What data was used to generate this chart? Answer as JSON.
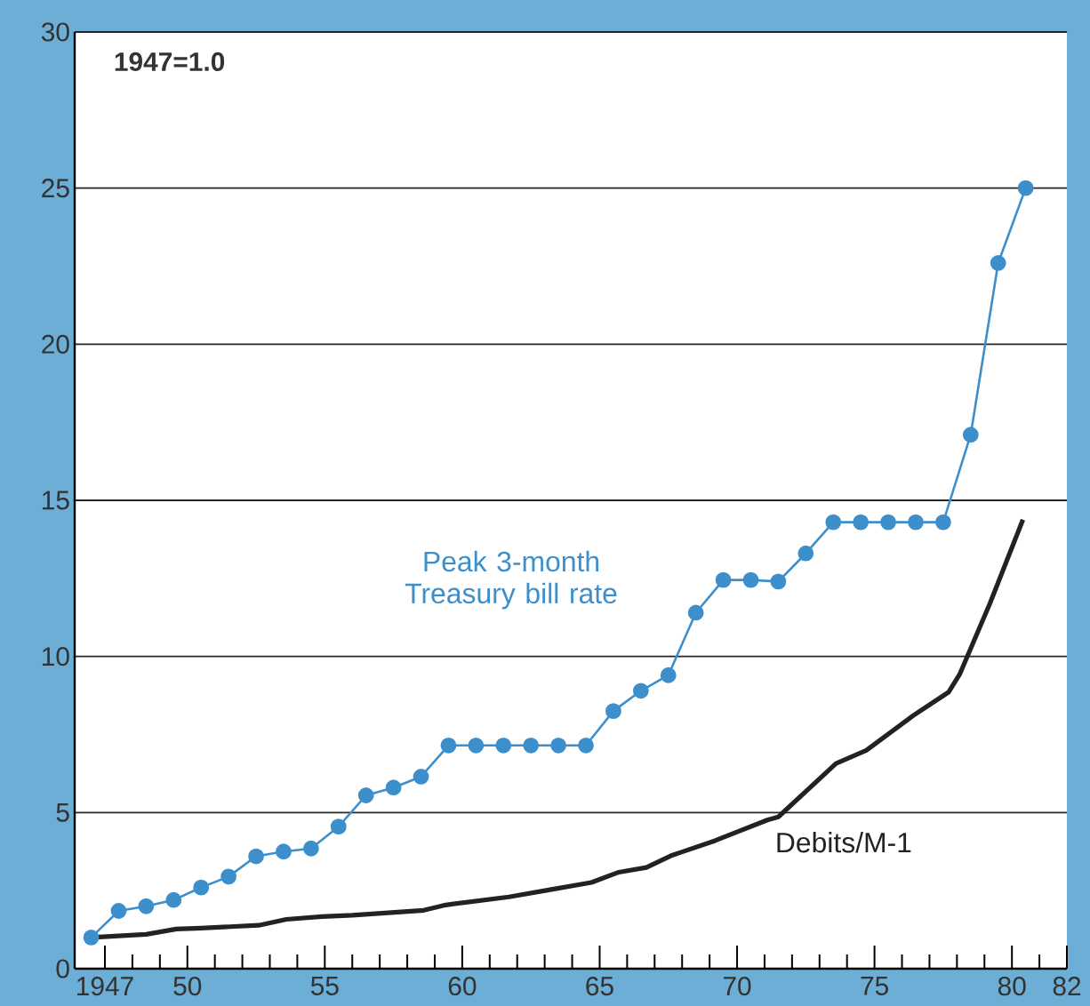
{
  "chart_data": {
    "type": "line",
    "annotations": [
      "1947=1.0"
    ],
    "xlim": [
      1945.9,
      1982
    ],
    "ylim": [
      0,
      30
    ],
    "xticks": [
      1947,
      {
        "value": 1948,
        "label": null
      },
      {
        "value": 1949,
        "label": null
      },
      {
        "value": 1950,
        "label": "50"
      },
      {
        "value": 1951,
        "label": null
      },
      {
        "value": 1952,
        "label": null
      },
      {
        "value": 1953,
        "label": null
      },
      {
        "value": 1954,
        "label": null
      },
      {
        "value": 1955,
        "label": "55"
      },
      {
        "value": 1956,
        "label": null
      },
      {
        "value": 1957,
        "label": null
      },
      {
        "value": 1958,
        "label": null
      },
      {
        "value": 1959,
        "label": null
      },
      {
        "value": 1960,
        "label": "60"
      },
      {
        "value": 1961,
        "label": null
      },
      {
        "value": 1962,
        "label": null
      },
      {
        "value": 1963,
        "label": null
      },
      {
        "value": 1964,
        "label": null
      },
      {
        "value": 1965,
        "label": "65"
      },
      {
        "value": 1966,
        "label": null
      },
      {
        "value": 1967,
        "label": null
      },
      {
        "value": 1968,
        "label": null
      },
      {
        "value": 1969,
        "label": null
      },
      {
        "value": 1970,
        "label": "70"
      },
      {
        "value": 1971,
        "label": null
      },
      {
        "value": 1972,
        "label": null
      },
      {
        "value": 1973,
        "label": null
      },
      {
        "value": 1974,
        "label": null
      },
      {
        "value": 1975,
        "label": "75"
      },
      {
        "value": 1976,
        "label": null
      },
      {
        "value": 1977,
        "label": null
      },
      {
        "value": 1978,
        "label": null
      },
      {
        "value": 1979,
        "label": null
      },
      {
        "value": 1980,
        "label": "80"
      },
      {
        "value": 1981,
        "label": null
      },
      {
        "value": 1982,
        "label": "82"
      }
    ],
    "yticks": [
      0,
      5,
      10,
      15,
      20,
      25,
      30
    ],
    "grid": "y",
    "series": [
      {
        "name": "Peak 3-month Treasury bill rate",
        "color": "#3d8fcc",
        "marker": "circle",
        "x": [
          1946.5,
          1947.5,
          1948.5,
          1949.5,
          1950.5,
          1951.5,
          1952.5,
          1953.5,
          1954.5,
          1955.5,
          1956.5,
          1957.5,
          1958.5,
          1959.5,
          1960.5,
          1961.5,
          1962.5,
          1963.5,
          1964.5,
          1965.5,
          1966.5,
          1967.5,
          1968.5,
          1969.5,
          1970.5,
          1971.5,
          1972.5,
          1973.5,
          1974.5,
          1975.5,
          1976.5,
          1977.5,
          1978.5,
          1979.5,
          1980.5
        ],
        "values": [
          1.0,
          1.85,
          2.0,
          2.2,
          2.6,
          2.95,
          3.6,
          3.75,
          3.85,
          4.55,
          5.55,
          5.8,
          6.15,
          7.15,
          7.15,
          7.15,
          7.15,
          7.15,
          7.15,
          8.25,
          8.9,
          9.4,
          11.4,
          12.45,
          12.45,
          12.4,
          13.3,
          14.3,
          14.3,
          14.3,
          14.3,
          14.3,
          17.1,
          22.6,
          25.0
        ]
      },
      {
        "name": "Debits/M-1",
        "color": "#222222",
        "marker": "none",
        "x": [
          1946.5,
          1948.5,
          1949.6,
          1950.5,
          1952.6,
          1953.6,
          1954.9,
          1956.0,
          1958.6,
          1959.4,
          1961.7,
          1963.2,
          1964.7,
          1965.7,
          1966.7,
          1967.6,
          1969.2,
          1970.0,
          1971.1,
          1971.5,
          1973.6,
          1974.7,
          1976.4,
          1977.7,
          1978.1,
          1979.2,
          1980.4
        ],
        "values": [
          1.0,
          1.1,
          1.27,
          1.3,
          1.39,
          1.58,
          1.67,
          1.71,
          1.87,
          2.04,
          2.3,
          2.53,
          2.76,
          3.09,
          3.24,
          3.62,
          4.1,
          4.38,
          4.76,
          4.86,
          6.57,
          6.99,
          8.1,
          8.86,
          9.43,
          11.7,
          14.38
        ]
      }
    ]
  }
}
